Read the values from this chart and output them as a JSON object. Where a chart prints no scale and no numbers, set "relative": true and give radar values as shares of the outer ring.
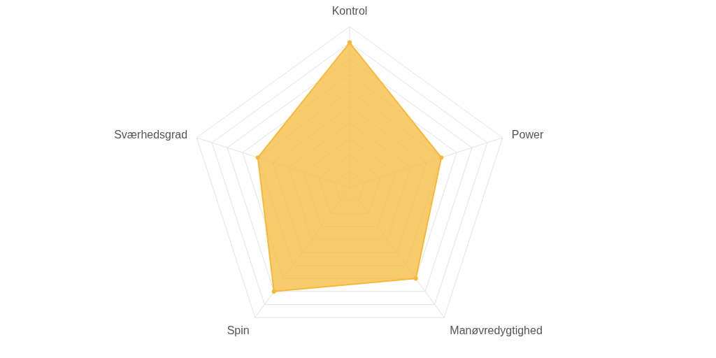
{
  "chart_data": {
    "type": "radar",
    "relative": true,
    "grid": true,
    "marker": "circle",
    "categories": [
      "Kontrol",
      "Power",
      "Manøvredygtighed",
      "Spin",
      "Sværhedsgrad"
    ],
    "series": [
      {
        "color": "#f6b93b",
        "values": [
          0.9,
          0.6,
          0.7,
          0.8,
          0.6
        ]
      }
    ]
  }
}
